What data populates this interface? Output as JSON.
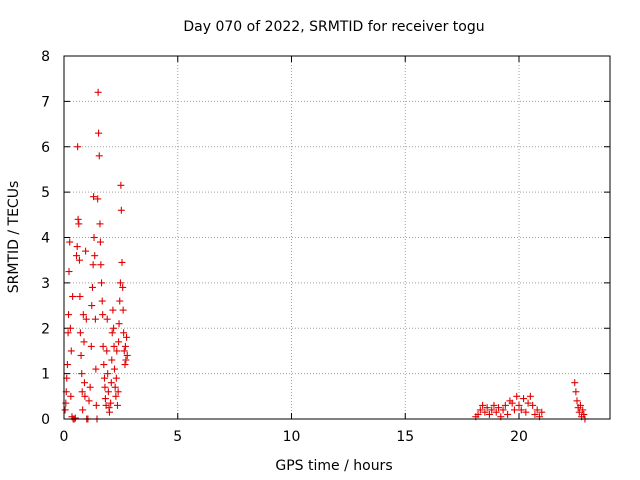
{
  "chart_data": {
    "type": "scatter",
    "title": "Day 070 of 2022, SRMTID for receiver togu",
    "xlabel": "GPS time / hours",
    "ylabel": "SRMTID / TECUs",
    "xlim": [
      0,
      24
    ],
    "ylim": [
      0,
      8
    ],
    "x_ticks": [
      "0",
      "5",
      "10",
      "15",
      "20"
    ],
    "y_ticks": [
      "0",
      "1",
      "2",
      "3",
      "4",
      "5",
      "6",
      "7",
      "8"
    ],
    "grid": true,
    "marker": "+",
    "marker_color": "#e00000",
    "series": [
      {
        "name": "SRMTID",
        "points": [
          [
            0.05,
            0.2
          ],
          [
            0.08,
            0.35
          ],
          [
            0.1,
            0.6
          ],
          [
            0.12,
            0.9
          ],
          [
            0.15,
            1.2
          ],
          [
            0.18,
            1.9
          ],
          [
            0.2,
            2.3
          ],
          [
            0.22,
            3.25
          ],
          [
            0.25,
            3.9
          ],
          [
            0.28,
            2.0
          ],
          [
            0.3,
            0.5
          ],
          [
            0.32,
            1.5
          ],
          [
            0.35,
            0.05
          ],
          [
            0.38,
            2.7
          ],
          [
            0.4,
            0.0
          ],
          [
            0.45,
            0.0
          ],
          [
            0.5,
            0.02
          ],
          [
            0.55,
            3.6
          ],
          [
            0.58,
            3.8
          ],
          [
            0.6,
            6.0
          ],
          [
            0.62,
            4.4
          ],
          [
            0.65,
            4.3
          ],
          [
            0.68,
            3.5
          ],
          [
            0.7,
            2.7
          ],
          [
            0.72,
            1.9
          ],
          [
            0.75,
            1.4
          ],
          [
            0.78,
            1.0
          ],
          [
            0.8,
            0.6
          ],
          [
            0.82,
            0.2
          ],
          [
            0.85,
            2.3
          ],
          [
            0.88,
            1.7
          ],
          [
            0.9,
            0.8
          ],
          [
            0.92,
            0.5
          ],
          [
            0.95,
            3.7
          ],
          [
            0.98,
            2.2
          ],
          [
            1.0,
            0.0
          ],
          [
            1.05,
            0.0
          ],
          [
            1.1,
            0.4
          ],
          [
            1.15,
            0.7
          ],
          [
            1.2,
            1.6
          ],
          [
            1.22,
            2.5
          ],
          [
            1.25,
            2.9
          ],
          [
            1.28,
            3.4
          ],
          [
            1.3,
            4.9
          ],
          [
            1.32,
            4.0
          ],
          [
            1.35,
            3.6
          ],
          [
            1.38,
            2.2
          ],
          [
            1.4,
            1.1
          ],
          [
            1.42,
            0.3
          ],
          [
            1.45,
            0.0
          ],
          [
            1.48,
            4.85
          ],
          [
            1.5,
            7.2
          ],
          [
            1.52,
            6.3
          ],
          [
            1.55,
            5.8
          ],
          [
            1.58,
            4.3
          ],
          [
            1.6,
            3.9
          ],
          [
            1.62,
            3.4
          ],
          [
            1.65,
            3.0
          ],
          [
            1.68,
            2.6
          ],
          [
            1.7,
            2.3
          ],
          [
            1.72,
            1.6
          ],
          [
            1.75,
            1.2
          ],
          [
            1.78,
            0.9
          ],
          [
            1.8,
            0.7
          ],
          [
            1.82,
            0.45
          ],
          [
            1.85,
            0.3
          ],
          [
            1.88,
            1.5
          ],
          [
            1.9,
            2.2
          ],
          [
            1.92,
            1.0
          ],
          [
            1.95,
            0.6
          ],
          [
            1.98,
            0.25
          ],
          [
            2.0,
            0.15
          ],
          [
            2.05,
            0.35
          ],
          [
            2.08,
            0.8
          ],
          [
            2.1,
            1.3
          ],
          [
            2.12,
            1.9
          ],
          [
            2.15,
            2.4
          ],
          [
            2.18,
            2.0
          ],
          [
            2.2,
            1.6
          ],
          [
            2.22,
            1.1
          ],
          [
            2.25,
            0.7
          ],
          [
            2.28,
            0.5
          ],
          [
            2.3,
            0.9
          ],
          [
            2.32,
            1.5
          ],
          [
            2.35,
            0.3
          ],
          [
            2.38,
            0.6
          ],
          [
            2.4,
            1.7
          ],
          [
            2.42,
            2.1
          ],
          [
            2.45,
            2.6
          ],
          [
            2.48,
            3.0
          ],
          [
            2.5,
            5.15
          ],
          [
            2.52,
            4.6
          ],
          [
            2.55,
            3.45
          ],
          [
            2.58,
            2.9
          ],
          [
            2.6,
            2.4
          ],
          [
            2.62,
            1.9
          ],
          [
            2.65,
            1.5
          ],
          [
            2.68,
            1.2
          ],
          [
            2.7,
            1.6
          ],
          [
            2.72,
            1.3
          ],
          [
            2.75,
            1.8
          ],
          [
            2.78,
            1.4
          ],
          [
            18.1,
            0.05
          ],
          [
            18.2,
            0.1
          ],
          [
            18.3,
            0.2
          ],
          [
            18.4,
            0.3
          ],
          [
            18.5,
            0.15
          ],
          [
            18.6,
            0.25
          ],
          [
            18.7,
            0.1
          ],
          [
            18.8,
            0.2
          ],
          [
            18.9,
            0.3
          ],
          [
            19.0,
            0.15
          ],
          [
            19.1,
            0.25
          ],
          [
            19.2,
            0.05
          ],
          [
            19.3,
            0.2
          ],
          [
            19.4,
            0.3
          ],
          [
            19.5,
            0.1
          ],
          [
            19.6,
            0.4
          ],
          [
            19.7,
            0.35
          ],
          [
            19.8,
            0.2
          ],
          [
            19.9,
            0.5
          ],
          [
            20.0,
            0.3
          ],
          [
            20.1,
            0.2
          ],
          [
            20.2,
            0.45
          ],
          [
            20.3,
            0.15
          ],
          [
            20.4,
            0.35
          ],
          [
            20.5,
            0.5
          ],
          [
            20.6,
            0.3
          ],
          [
            20.7,
            0.1
          ],
          [
            20.8,
            0.2
          ],
          [
            20.9,
            0.05
          ],
          [
            21.0,
            0.15
          ],
          [
            22.45,
            0.8
          ],
          [
            22.5,
            0.6
          ],
          [
            22.55,
            0.4
          ],
          [
            22.6,
            0.25
          ],
          [
            22.65,
            0.15
          ],
          [
            22.7,
            0.3
          ],
          [
            22.75,
            0.05
          ],
          [
            22.8,
            0.2
          ],
          [
            22.85,
            0.1
          ],
          [
            22.9,
            0.0
          ]
        ]
      }
    ]
  }
}
